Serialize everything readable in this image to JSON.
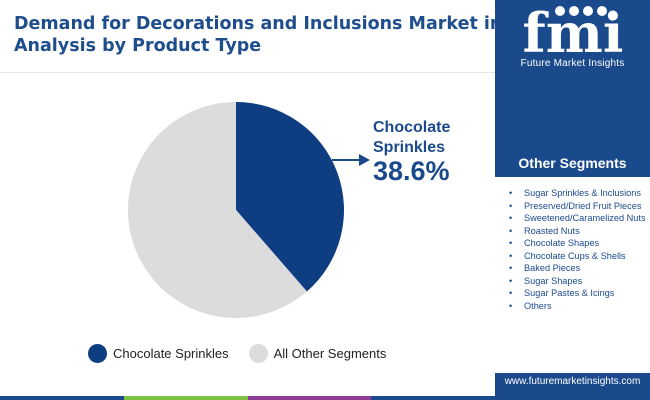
{
  "header": {
    "title_line1": "Demand for Decorations and Inclusions Market in EU",
    "title_line2": "Analysis by Product Type"
  },
  "logo": {
    "letters": "fmi",
    "caption": "Future Market Insights"
  },
  "sidebar": {
    "segments_title": "Other Segments",
    "segments": [
      "Sugar Sprinkles & Inclusions",
      "Preserved/Dried Fruit Pieces",
      "Sweetened/Caramelized Nuts",
      "Roasted Nuts",
      "Chocolate Shapes",
      "Chocolate Cups & Shells",
      "Baked Pieces",
      "Sugar Shapes",
      "Sugar Pastes & Icings",
      "Others"
    ],
    "website": "www.futuremarketinsights.com"
  },
  "callout": {
    "label_line1": "Chocolate",
    "label_line2": "Sprinkles",
    "value": "38.6%"
  },
  "legend": {
    "items": [
      {
        "label": "Chocolate Sprinkles"
      },
      {
        "label": "All Other Segments"
      }
    ]
  },
  "colors": {
    "highlight": "#0f3d82",
    "other": "#dcdcdc",
    "brand": "#1b4a8c",
    "bar": [
      "#1b4a8c",
      "#7dc243",
      "#8e3d97",
      "#1b4a8c"
    ]
  },
  "chart_data": {
    "type": "pie",
    "series": [
      {
        "name": "Chocolate Sprinkles",
        "value": 38.6
      },
      {
        "name": "All Other Segments",
        "value": 61.4
      }
    ],
    "start": "12 o'clock",
    "direction": "clockwise",
    "highlight_label": "38.6%",
    "legend_position": "bottom"
  }
}
